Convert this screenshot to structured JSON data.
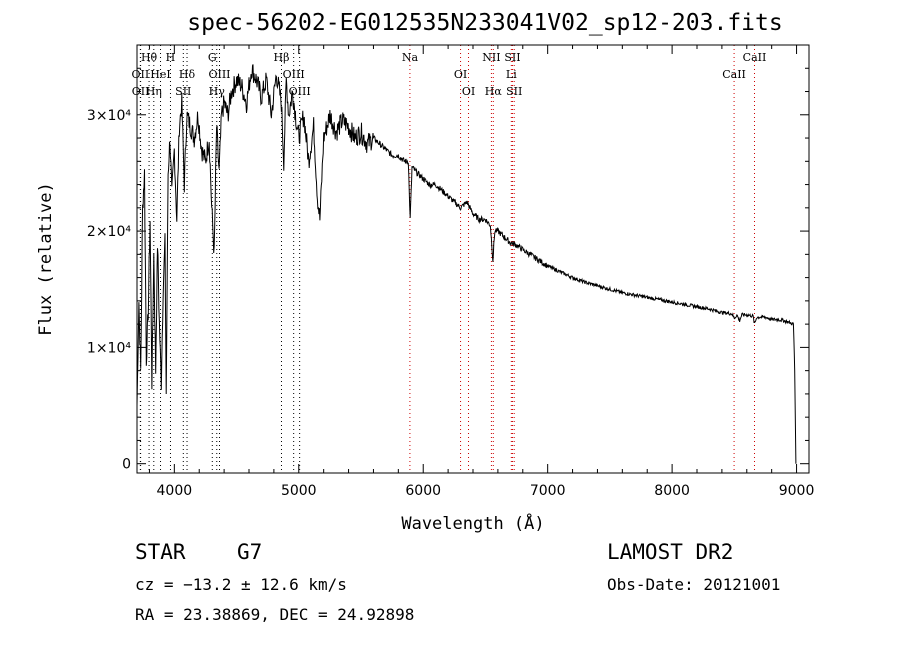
{
  "title": "spec-56202-EG012535N233041V02_sp12-203.fits",
  "info": {
    "object_class": "STAR",
    "subclass": "G7",
    "survey": "LAMOST DR2",
    "cz": "cz = −13.2 ± 12.6 km/s",
    "obs_date": "Obs-Date: 20121001",
    "radec": "RA =  23.38869, DEC =  24.92898"
  },
  "chart_data": {
    "type": "line",
    "title": "spec-56202-EG012535N233041V02_sp12-203.fits",
    "xlabel": "Wavelength (Å)",
    "ylabel": "Flux (relative)",
    "xlim": [
      3700,
      9100
    ],
    "ylim": [
      -800,
      36000
    ],
    "xticks": [
      4000,
      5000,
      6000,
      7000,
      8000,
      9000
    ],
    "xtick_labels": [
      "4000",
      "5000",
      "6000",
      "7000",
      "8000",
      "9000"
    ],
    "yticks": [
      0,
      10000,
      20000,
      30000
    ],
    "ytick_labels": [
      "0",
      "1×10⁴",
      "2×10⁴",
      "3×10⁴"
    ],
    "grid": false,
    "series": [
      {
        "color": "#000000",
        "x": [
          3700,
          3715,
          3730,
          3745,
          3760,
          3775,
          3790,
          3805,
          3820,
          3835,
          3850,
          3865,
          3880,
          3895,
          3910,
          3925,
          3935,
          3950,
          3965,
          3980,
          4000,
          4020,
          4040,
          4060,
          4080,
          4100,
          4130,
          4160,
          4190,
          4220,
          4250,
          4280,
          4300,
          4320,
          4340,
          4360,
          4380,
          4400,
          4430,
          4460,
          4500,
          4540,
          4580,
          4620,
          4660,
          4700,
          4740,
          4780,
          4820,
          4860,
          4880,
          4900,
          4920,
          4950,
          4980,
          5000,
          5040,
          5080,
          5120,
          5150,
          5170,
          5200,
          5250,
          5300,
          5350,
          5400,
          5450,
          5500,
          5550,
          5600,
          5650,
          5700,
          5750,
          5800,
          5850,
          5880,
          5895,
          5910,
          5950,
          6000,
          6050,
          6100,
          6150,
          6200,
          6250,
          6300,
          6350,
          6400,
          6450,
          6500,
          6540,
          6560,
          6575,
          6600,
          6650,
          6700,
          6750,
          6800,
          6900,
          7000,
          7100,
          7200,
          7300,
          7400,
          7500,
          7600,
          7700,
          7800,
          7900,
          8000,
          8100,
          8200,
          8300,
          8400,
          8480,
          8500,
          8520,
          8542,
          8560,
          8600,
          8650,
          8662,
          8680,
          8750,
          8800,
          8850,
          8900,
          8950,
          8975,
          8985,
          8995
        ],
        "values": [
          5000,
          14000,
          8000,
          22000,
          25000,
          9000,
          13000,
          21000,
          7000,
          18000,
          8000,
          19000,
          12000,
          7000,
          15000,
          19000,
          6000,
          25000,
          28000,
          23000,
          27000,
          21000,
          29000,
          31000,
          24000,
          30000,
          29000,
          28000,
          30000,
          27000,
          26000,
          28000,
          22000,
          18000,
          29000,
          25000,
          30000,
          31000,
          30000,
          32000,
          33000,
          32500,
          31000,
          34000,
          33000,
          31500,
          33000,
          30000,
          33500,
          31000,
          26000,
          33000,
          30000,
          32000,
          29500,
          28000,
          30000,
          26000,
          29000,
          23000,
          21000,
          28000,
          30000,
          28500,
          29500,
          29000,
          28000,
          28500,
          27500,
          28000,
          27500,
          27000,
          26500,
          26500,
          26000,
          26000,
          21000,
          25500,
          25000,
          24500,
          24000,
          24000,
          23500,
          23000,
          22500,
          22000,
          22500,
          21500,
          21000,
          21000,
          20500,
          17500,
          20000,
          20000,
          19500,
          19000,
          18800,
          18400,
          17700,
          17000,
          16500,
          16000,
          15600,
          15300,
          15000,
          14700,
          14500,
          14300,
          14100,
          13900,
          13700,
          13500,
          13300,
          13000,
          12900,
          12500,
          12800,
          12300,
          12800,
          12800,
          12700,
          12000,
          12600,
          12600,
          12400,
          12400,
          12300,
          12100,
          12000,
          8000,
          0
        ]
      }
    ],
    "lines": [
      {
        "label": "Hθ",
        "wl": 3797,
        "color": "#000000",
        "row": 0
      },
      {
        "label": "OII",
        "wl": 3727,
        "color": "#000000",
        "row": 1
      },
      {
        "label": "OII",
        "wl": 3729,
        "color": "#000000",
        "row": 2
      },
      {
        "label": "HeI",
        "wl": 3889,
        "color": "#000000",
        "row": 1
      },
      {
        "label": "Hη",
        "wl": 3835,
        "color": "#000000",
        "row": 2
      },
      {
        "label": "H",
        "wl": 3969,
        "color": "#000000",
        "row": 0
      },
      {
        "label": "Hδ",
        "wl": 4102,
        "color": "#000000",
        "row": 1
      },
      {
        "label": "SII",
        "wl": 4072,
        "color": "#000000",
        "row": 2
      },
      {
        "label": "G",
        "wl": 4305,
        "color": "#000000",
        "row": 0
      },
      {
        "label": "OIII",
        "wl": 4363,
        "color": "#000000",
        "row": 1
      },
      {
        "label": "Hγ",
        "wl": 4341,
        "color": "#000000",
        "row": 2
      },
      {
        "label": "Hβ",
        "wl": 4861,
        "color": "#000000",
        "row": 0
      },
      {
        "label": "OIII",
        "wl": 4959,
        "color": "#000000",
        "row": 1
      },
      {
        "label": "OIII",
        "wl": 5007,
        "color": "#000000",
        "row": 2
      },
      {
        "label": "Na",
        "wl": 5893,
        "color": "#cc0000",
        "row": 0
      },
      {
        "label": "OI",
        "wl": 6300,
        "color": "#cc0000",
        "row": 1
      },
      {
        "label": "OI",
        "wl": 6364,
        "color": "#cc0000",
        "row": 2
      },
      {
        "label": "NII",
        "wl": 6548,
        "color": "#cc0000",
        "row": 0
      },
      {
        "label": "SII",
        "wl": 6717,
        "color": "#cc0000",
        "row": 0
      },
      {
        "label": "Li",
        "wl": 6708,
        "color": "#cc0000",
        "row": 1
      },
      {
        "label": "Hα",
        "wl": 6563,
        "color": "#cc0000",
        "row": 2
      },
      {
        "label": "SII",
        "wl": 6731,
        "color": "#cc0000",
        "row": 2
      },
      {
        "label": "CaII",
        "wl": 8662,
        "color": "#cc0000",
        "row": 0
      },
      {
        "label": "CaII",
        "wl": 8498,
        "color": "#cc0000",
        "row": 1
      }
    ]
  }
}
